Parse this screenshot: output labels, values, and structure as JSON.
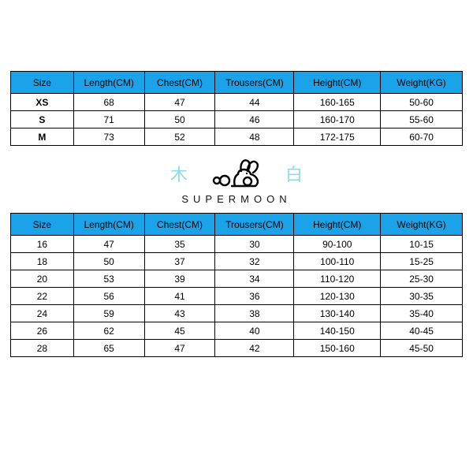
{
  "colors": {
    "header_bg": "#1aa3e8",
    "border": "#000000",
    "text": "#000000",
    "cn_char": "#8fd9e8",
    "background": "#ffffff"
  },
  "table1": {
    "type": "table",
    "columns": [
      "Size",
      "Length(CM)",
      "Chest(CM)",
      "Trousers(CM)",
      "Height(CM)",
      "Weight(KG)"
    ],
    "rows": [
      [
        "XS",
        "68",
        "47",
        "44",
        "160-165",
        "50-60"
      ],
      [
        "S",
        "71",
        "50",
        "46",
        "160-170",
        "55-60"
      ],
      [
        "M",
        "73",
        "52",
        "48",
        "172-175",
        "60-70"
      ]
    ],
    "header_bg": "#1aa3e8",
    "header_fontsize": 12,
    "cell_fontsize": 12,
    "border_color": "#000000"
  },
  "logo": {
    "left_char": "木",
    "right_char": "白",
    "char_color": "#8fd9e8",
    "brand_text": "SUPERMOON",
    "brand_letter_spacing": 6,
    "rabbit_stroke": "#000000"
  },
  "table2": {
    "type": "table",
    "columns": [
      "Size",
      "Length(CM)",
      "Chest(CM)",
      "Trousers(CM)",
      "Height(CM)",
      "Weight(KG)"
    ],
    "rows": [
      [
        "16",
        "47",
        "35",
        "30",
        "90-100",
        "10-15"
      ],
      [
        "18",
        "50",
        "37",
        "32",
        "100-110",
        "15-25"
      ],
      [
        "20",
        "53",
        "39",
        "34",
        "110-120",
        "25-30"
      ],
      [
        "22",
        "56",
        "41",
        "36",
        "120-130",
        "30-35"
      ],
      [
        "24",
        "59",
        "43",
        "38",
        "130-140",
        "35-40"
      ],
      [
        "26",
        "62",
        "45",
        "40",
        "140-150",
        "40-45"
      ],
      [
        "28",
        "65",
        "47",
        "42",
        "150-160",
        "45-50"
      ]
    ],
    "header_bg": "#1aa3e8",
    "header_fontsize": 12,
    "cell_fontsize": 12,
    "border_color": "#000000"
  }
}
